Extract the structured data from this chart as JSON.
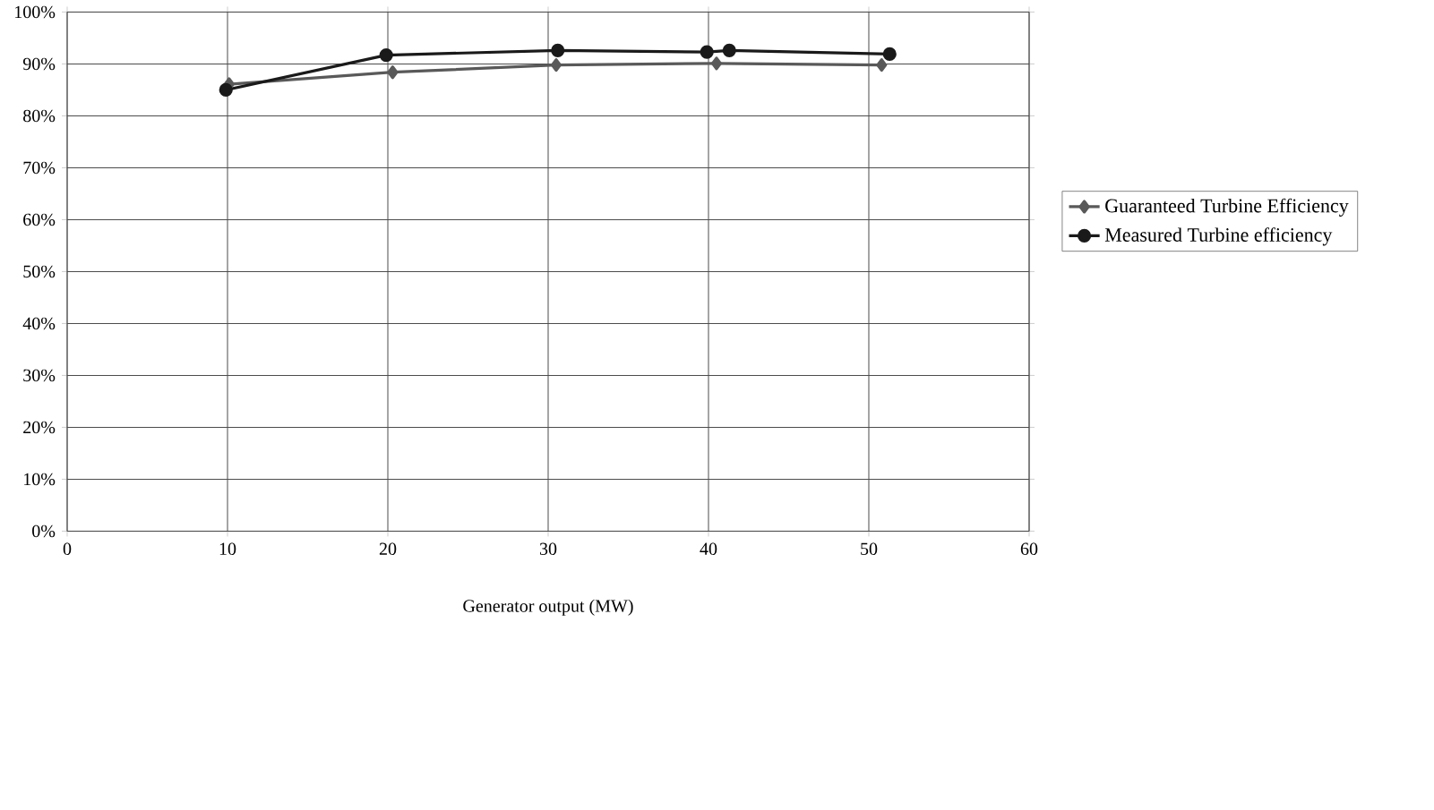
{
  "chart_data": {
    "type": "line",
    "xlabel": "Generator output (MW)",
    "series": [
      {
        "name": "Guaranteed Turbine Efficiency",
        "color": "#595959",
        "marker": "diamond",
        "x": [
          10.1,
          20.3,
          30.5,
          40.5,
          50.8
        ],
        "values": [
          86.1,
          88.4,
          89.8,
          90.1,
          89.8
        ]
      },
      {
        "name": "Measured Turbine efficiency",
        "color": "#1a1a1a",
        "marker": "circle",
        "x": [
          9.9,
          19.9,
          30.6,
          39.9,
          41.3,
          51.3
        ],
        "values": [
          85.0,
          91.7,
          92.6,
          92.3,
          92.6,
          91.9
        ]
      }
    ],
    "xlim": [
      0,
      60
    ],
    "xticks": [
      0,
      10,
      20,
      30,
      40,
      50,
      60
    ],
    "ylim": [
      0,
      100
    ],
    "yticks": [
      {
        "value": 0,
        "label": "0%"
      },
      {
        "value": 10,
        "label": "10%"
      },
      {
        "value": 20,
        "label": "20%"
      },
      {
        "value": 30,
        "label": "30%"
      },
      {
        "value": 40,
        "label": "40%"
      },
      {
        "value": 50,
        "label": "50%"
      },
      {
        "value": 60,
        "label": "60%"
      },
      {
        "value": 70,
        "label": "70%"
      },
      {
        "value": 80,
        "label": "80%"
      },
      {
        "value": 90,
        "label": "90%"
      },
      {
        "value": 100,
        "label": "100%"
      }
    ],
    "grid": true,
    "legend": "right",
    "line_style": "solid"
  }
}
